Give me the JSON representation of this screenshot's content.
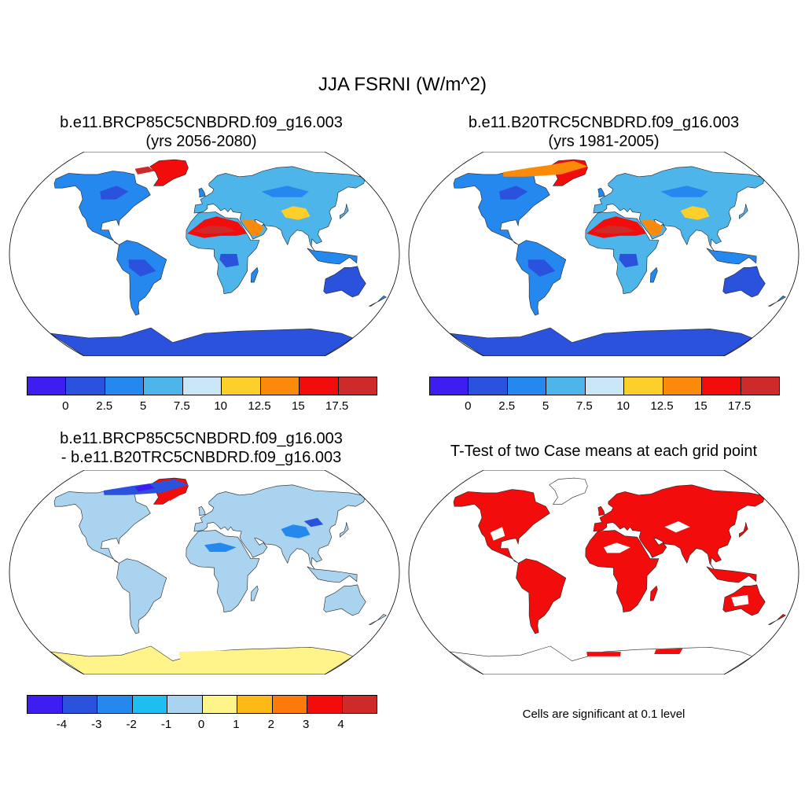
{
  "title": "JJA FSRNI (W/m^2)",
  "panels": [
    {
      "title_line1": "b.e11.BRCP85C5CNBDRD.f09_g16.003",
      "title_line2": "(yrs 2056-2080)"
    },
    {
      "title_line1": "b.e11.B20TRC5CNBDRD.f09_g16.003",
      "title_line2": "(yrs 1981-2005)"
    },
    {
      "title_line1": "b.e11.BRCP85C5CNBDRD.f09_g16.003",
      "title_line2": "- b.e11.B20TRC5CNBDRD.f09_g16.003"
    },
    {
      "title_line1": "T-Test of two Case means at each grid point",
      "note": "Cells are significant at 0.1 level"
    }
  ],
  "colorbars": {
    "absolute": {
      "colors": [
        "#3d1df0",
        "#2b52dc",
        "#2488ef",
        "#4db5ea",
        "#cbe6f7",
        "#fdcf2b",
        "#fb8a0a",
        "#f20c0c",
        "#cf2a2a"
      ],
      "labels": [
        "0",
        "2.5",
        "5",
        "7.5",
        "10",
        "12.5",
        "15",
        "17.5"
      ]
    },
    "difference": {
      "colors": [
        "#3d1df0",
        "#2b52dc",
        "#2488ef",
        "#1ebff0",
        "#a9d3ee",
        "#fff48a",
        "#fdb915",
        "#fb7a0a",
        "#f20c0c",
        "#cf2a2a"
      ],
      "labels": [
        "-4",
        "-3",
        "-2",
        "-1",
        "0",
        "1",
        "2",
        "3",
        "4"
      ]
    }
  }
}
